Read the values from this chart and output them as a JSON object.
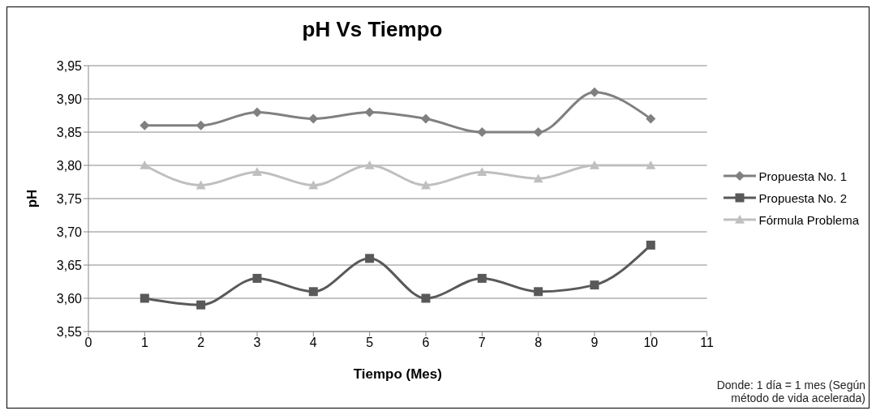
{
  "chart_data": {
    "type": "line",
    "title": "pH Vs Tiempo",
    "xlabel": "Tiempo (Mes)",
    "ylabel": "pH",
    "x": [
      1,
      2,
      3,
      4,
      5,
      6,
      7,
      8,
      9,
      10
    ],
    "series": [
      {
        "name": "Propuesta No. 1",
        "color": "#808080",
        "marker": "diamond",
        "values": [
          3.86,
          3.86,
          3.88,
          3.87,
          3.88,
          3.87,
          3.85,
          3.85,
          3.91,
          3.87
        ]
      },
      {
        "name": "Propuesta No. 2",
        "color": "#595959",
        "marker": "square",
        "values": [
          3.6,
          3.59,
          3.63,
          3.61,
          3.66,
          3.6,
          3.63,
          3.61,
          3.62,
          3.68
        ]
      },
      {
        "name": "Fórmula Problema",
        "color": "#bfbfbf",
        "marker": "triangle",
        "values": [
          3.8,
          3.77,
          3.79,
          3.77,
          3.8,
          3.77,
          3.79,
          3.78,
          3.8,
          3.8
        ]
      }
    ],
    "xlim": [
      0,
      11
    ],
    "xticks": [
      0,
      1,
      2,
      3,
      4,
      5,
      6,
      7,
      8,
      9,
      10,
      11
    ],
    "ylim": [
      3.55,
      3.95
    ],
    "yticks": [
      {
        "value": 3.55,
        "label": "3,55"
      },
      {
        "value": 3.6,
        "label": "3,60"
      },
      {
        "value": 3.65,
        "label": "3,65"
      },
      {
        "value": 3.7,
        "label": "3,70"
      },
      {
        "value": 3.75,
        "label": "3,75"
      },
      {
        "value": 3.8,
        "label": "3,80"
      },
      {
        "value": 3.85,
        "label": "3,85"
      },
      {
        "value": 3.9,
        "label": "3,90"
      },
      {
        "value": 3.95,
        "label": "3,95"
      }
    ],
    "grid": "y",
    "legend": "right",
    "line_style": "solid",
    "annotations": [
      "Donde: 1 día = 1 mes (Según método de vida acelerada)"
    ]
  }
}
